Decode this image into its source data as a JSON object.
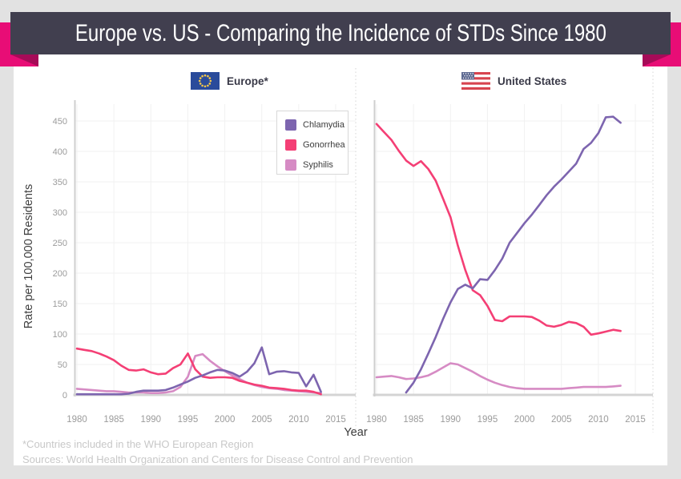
{
  "banner": {
    "title": "Europe vs. US - Comparing the Incidence of STDs Since 1980"
  },
  "panels": {
    "europe": {
      "title": "Europe*",
      "flag": "eu-flag"
    },
    "us": {
      "title": "United States",
      "flag": "us-flag"
    }
  },
  "legend": {
    "items": [
      {
        "label": "Chlamydia",
        "color": "#7d65af"
      },
      {
        "label": "Gonorrhea",
        "color": "#f43f75"
      },
      {
        "label": "Syphilis",
        "color": "#d68bc4"
      }
    ]
  },
  "axes": {
    "y_title": "Rate per 100,000 Residents",
    "x_title": "Year",
    "y_ticks": [
      0,
      50,
      100,
      150,
      200,
      250,
      300,
      350,
      400,
      450
    ],
    "x_ticks": [
      1980,
      1985,
      1990,
      1995,
      2000,
      2005,
      2010,
      2015
    ]
  },
  "footnotes": {
    "line1": "*Countries included in the WHO European Region",
    "line2": "Sources: World Health Organization and Centers for Disease Control and Prevention"
  },
  "colors": {
    "banner_bg": "#413f4f",
    "ribbon": "#e80d76",
    "ribbon_fold": "#a60b58",
    "page_bg": "#e2e2e2",
    "gridline": "#f1f1f1",
    "axis_line": "#cfcfcf",
    "zero_line": "#d4d4d4",
    "dotted_border": "#dcdcdc",
    "tick_text": "#9b9b9b"
  },
  "chart_data": [
    {
      "type": "line",
      "title": "Europe*",
      "xlabel": "Year",
      "ylabel": "Rate per 100,000 Residents",
      "xlim": [
        1980,
        2015
      ],
      "ylim": [
        0,
        475
      ],
      "grid": true,
      "legend_position": "top-right of Europe panel",
      "x": [
        1980,
        1981,
        1982,
        1983,
        1984,
        1985,
        1986,
        1987,
        1988,
        1989,
        1990,
        1991,
        1992,
        1993,
        1994,
        1995,
        1996,
        1997,
        1998,
        1999,
        2000,
        2001,
        2002,
        2003,
        2004,
        2005,
        2006,
        2007,
        2008,
        2009,
        2010,
        2011,
        2012,
        2013
      ],
      "series": [
        {
          "name": "Chlamydia",
          "color": "#7d65af",
          "values": [
            1,
            1,
            1,
            1,
            1,
            1,
            1,
            2,
            5,
            7,
            7,
            7,
            8,
            12,
            17,
            22,
            28,
            32,
            37,
            41,
            40,
            36,
            30,
            38,
            52,
            78,
            34,
            38,
            39,
            37,
            36,
            14,
            33,
            5
          ]
        },
        {
          "name": "Gonorrhea",
          "color": "#f43f75",
          "values": [
            76,
            74,
            72,
            68,
            63,
            57,
            48,
            41,
            40,
            42,
            37,
            34,
            35,
            44,
            50,
            68,
            42,
            30,
            28,
            29,
            29,
            28,
            23,
            20,
            17,
            15,
            12,
            11,
            10,
            8,
            7,
            7,
            5,
            1
          ]
        },
        {
          "name": "Syphilis",
          "color": "#d68bc4",
          "values": [
            10,
            9,
            8,
            7,
            6,
            6,
            5,
            4,
            4,
            4,
            3,
            3,
            4,
            6,
            13,
            30,
            64,
            67,
            56,
            47,
            39,
            32,
            26,
            20,
            16,
            13,
            11,
            10,
            8,
            7,
            6,
            5,
            4,
            3
          ]
        }
      ]
    },
    {
      "type": "line",
      "title": "United States",
      "xlabel": "Year",
      "ylabel": "Rate per 100,000 Residents",
      "xlim": [
        1980,
        2015
      ],
      "ylim": [
        0,
        475
      ],
      "grid": true,
      "x": [
        1980,
        1981,
        1982,
        1983,
        1984,
        1985,
        1986,
        1987,
        1988,
        1989,
        1990,
        1991,
        1992,
        1993,
        1994,
        1995,
        1996,
        1997,
        1998,
        1999,
        2000,
        2001,
        2002,
        2003,
        2004,
        2005,
        2006,
        2007,
        2008,
        2009,
        2010,
        2011,
        2012,
        2013
      ],
      "series": [
        {
          "name": "Chlamydia",
          "color": "#7d65af",
          "values": [
            null,
            null,
            null,
            null,
            4,
            20,
            42,
            68,
            95,
            125,
            152,
            174,
            181,
            175,
            190,
            189,
            205,
            224,
            250,
            266,
            282,
            296,
            312,
            328,
            342,
            354,
            367,
            380,
            404,
            414,
            430,
            456,
            457,
            447
          ]
        },
        {
          "name": "Gonorrhea",
          "color": "#f43f75",
          "values": [
            445,
            432,
            419,
            401,
            385,
            376,
            384,
            371,
            352,
            322,
            292,
            245,
            205,
            172,
            164,
            146,
            123,
            121,
            129,
            129,
            129,
            128,
            122,
            114,
            112,
            115,
            120,
            118,
            112,
            99,
            101,
            104,
            107,
            105
          ]
        },
        {
          "name": "Syphilis",
          "color": "#d68bc4",
          "values": [
            29,
            30,
            31,
            29,
            26,
            27,
            29,
            32,
            38,
            45,
            52,
            50,
            44,
            38,
            31,
            25,
            20,
            16,
            13,
            11,
            10,
            10,
            10,
            10,
            10,
            10,
            11,
            12,
            13,
            13,
            13,
            13,
            14,
            15
          ]
        }
      ]
    }
  ]
}
